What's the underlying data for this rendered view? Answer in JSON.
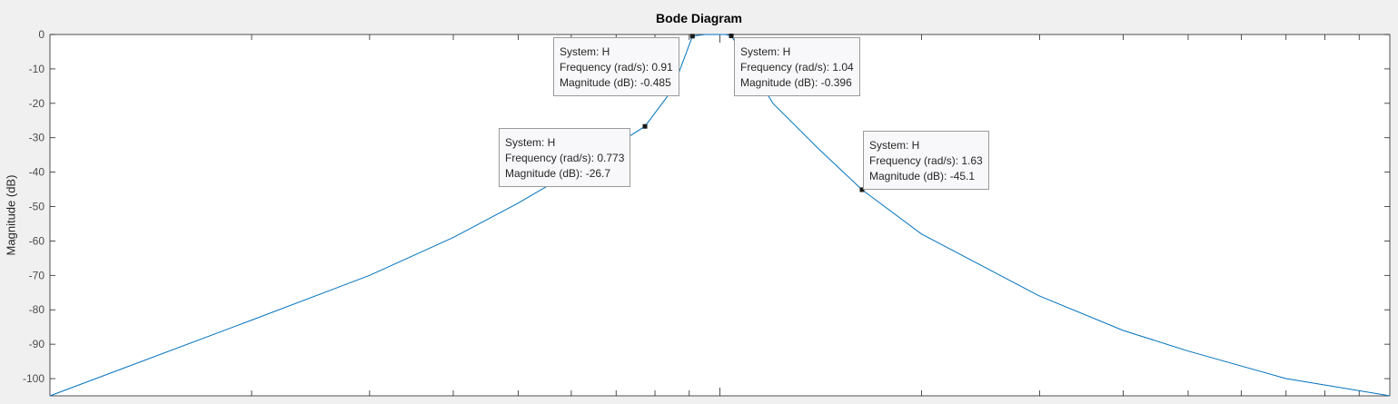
{
  "chart_data": {
    "type": "line",
    "title": "Bode Diagram",
    "ylabel": "Magnitude (dB)",
    "xlabel": "",
    "xscale": "log",
    "xlim": [
      0.1,
      10
    ],
    "ylim": [
      -105,
      0
    ],
    "yticks": [
      0,
      -10,
      -20,
      -30,
      -40,
      -50,
      -60,
      -70,
      -80,
      -90,
      -100
    ],
    "grid": false,
    "series": [
      {
        "name": "H",
        "color": "#0072bd",
        "x": [
          0.1,
          0.2,
          0.3,
          0.4,
          0.5,
          0.6,
          0.7,
          0.773,
          0.85,
          0.91,
          0.95,
          0.98,
          1.0,
          1.02,
          1.04,
          1.1,
          1.2,
          1.4,
          1.63,
          2,
          3,
          4,
          5,
          7,
          10
        ],
        "y": [
          -105,
          -83,
          -70,
          -59,
          -49,
          -40,
          -32,
          -26.7,
          -16,
          -0.485,
          0,
          0,
          0,
          0,
          -0.396,
          -8,
          -20,
          -33,
          -45.1,
          -58,
          -76,
          -86,
          -92,
          -100,
          -105
        ]
      }
    ]
  },
  "datatips": [
    {
      "system": "System: H",
      "frequency": "Frequency (rad/s): 0.91",
      "magnitude": "Magnitude (dB): -0.485",
      "x": 0.91,
      "y": -0.485
    },
    {
      "system": "System: H",
      "frequency": "Frequency (rad/s): 1.04",
      "magnitude": "Magnitude (dB): -0.396",
      "x": 1.04,
      "y": -0.396
    },
    {
      "system": "System: H",
      "frequency": "Frequency (rad/s): 0.773",
      "magnitude": "Magnitude (dB): -26.7",
      "x": 0.773,
      "y": -26.7
    },
    {
      "system": "System: H",
      "frequency": "Frequency (rad/s): 1.63",
      "magnitude": "Magnitude (dB): -45.1",
      "x": 1.63,
      "y": -45.1
    }
  ]
}
